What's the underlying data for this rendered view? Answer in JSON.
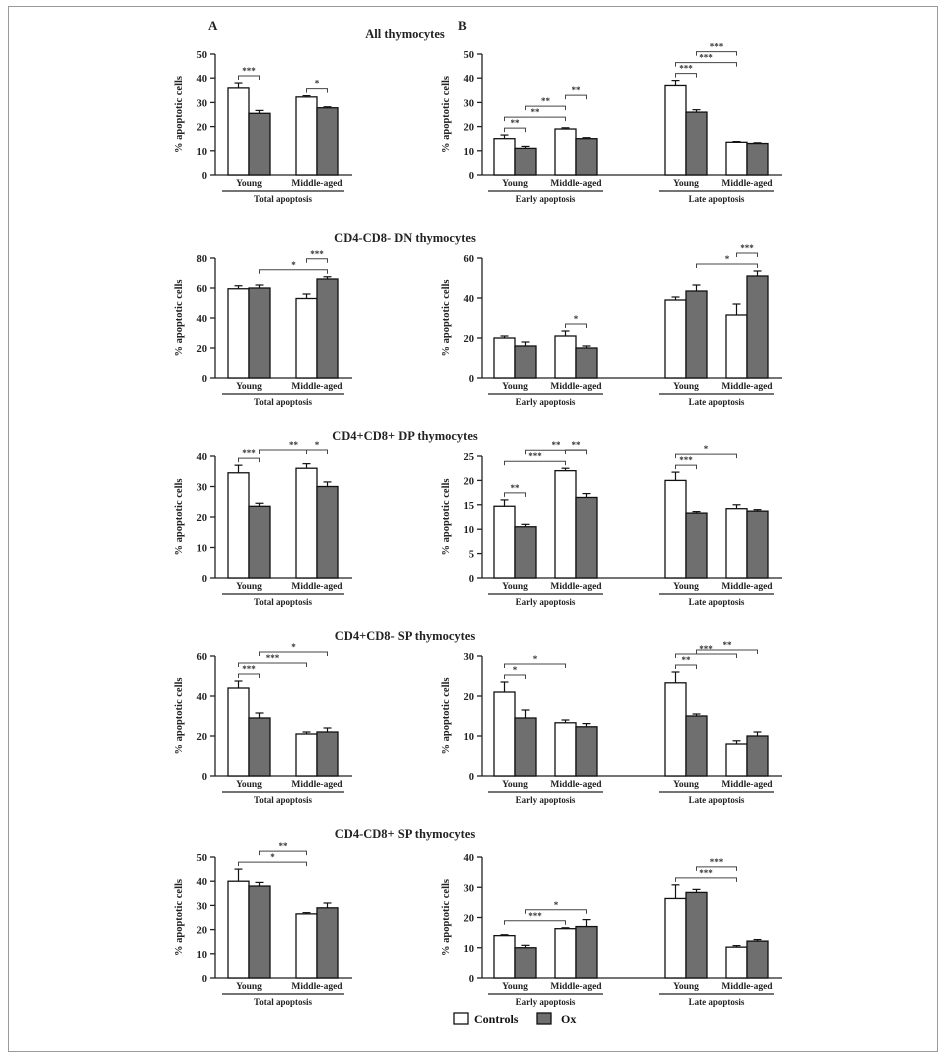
{
  "panel_labels": {
    "a": "A",
    "b": "B"
  },
  "legend": [
    {
      "name": "Controls",
      "color": "#ffffff"
    },
    {
      "name": "Ox",
      "color": "#6f6f6f"
    }
  ],
  "colors": {
    "controls": "#ffffff",
    "ox": "#6f6f6f",
    "axis": "#222222"
  },
  "chart_data": [
    {
      "type": "bar",
      "row": 0,
      "col": 0,
      "title": "All thymocytes",
      "ylabel": "% apoptotic cells",
      "ylim": [
        0,
        50
      ],
      "yticks": [
        0,
        10,
        20,
        30,
        40,
        50
      ],
      "groups": [
        {
          "label": "Total apoptosis",
          "categories": [
            "Young",
            "Middle-aged"
          ]
        }
      ],
      "series": [
        {
          "name": "Controls",
          "values": [
            36,
            32.3
          ],
          "errors": [
            2,
            0.5
          ]
        },
        {
          "name": "Ox",
          "values": [
            25.5,
            27.8
          ],
          "errors": [
            1.2,
            0.4
          ]
        }
      ],
      "significance": [
        {
          "from": 0,
          "to": 1,
          "label": "***"
        },
        {
          "from": 2,
          "to": 3,
          "label": "*"
        }
      ]
    },
    {
      "type": "bar",
      "row": 0,
      "col": 1,
      "title": "",
      "ylabel": "% apoptotic cells",
      "ylim": [
        0,
        50
      ],
      "yticks": [
        0,
        10,
        20,
        30,
        40,
        50
      ],
      "groups": [
        {
          "label": "Early apoptosis",
          "categories": [
            "Young",
            "Middle-aged"
          ]
        },
        {
          "label": "Late apoptosis",
          "categories": [
            "Young",
            "Middle-aged"
          ]
        }
      ],
      "series": [
        {
          "name": "Controls",
          "values": [
            15,
            19,
            37,
            13.5
          ],
          "errors": [
            1.5,
            0.5,
            2,
            0.3
          ]
        },
        {
          "name": "Ox",
          "values": [
            11,
            15,
            26,
            13
          ],
          "errors": [
            0.8,
            0.4,
            1,
            0.3
          ]
        }
      ],
      "significance": [
        {
          "from": 0,
          "to": 1,
          "label": "**"
        },
        {
          "from": 0,
          "to": 2,
          "label": "**"
        },
        {
          "from": 1,
          "to": 2,
          "label": "**"
        },
        {
          "from": 2,
          "to": 3,
          "label": "**"
        },
        {
          "from": 4,
          "to": 5,
          "label": "***"
        },
        {
          "from": 4,
          "to": 6,
          "label": "***"
        },
        {
          "from": 5,
          "to": 6,
          "label": "***"
        }
      ]
    },
    {
      "type": "bar",
      "row": 1,
      "col": 0,
      "title": "CD4-CD8- DN thymocytes",
      "ylabel": "% apoptotic cells",
      "ylim": [
        0,
        80
      ],
      "yticks": [
        0,
        20,
        40,
        60,
        80
      ],
      "groups": [
        {
          "label": "Total apoptosis",
          "categories": [
            "Young",
            "Middle-aged"
          ]
        }
      ],
      "series": [
        {
          "name": "Controls",
          "values": [
            59.5,
            53
          ],
          "errors": [
            2,
            3
          ]
        },
        {
          "name": "Ox",
          "values": [
            60,
            66
          ],
          "errors": [
            2,
            1.5
          ]
        }
      ],
      "significance": [
        {
          "from": 1,
          "to": 3,
          "label": "*"
        },
        {
          "from": 2,
          "to": 3,
          "label": "***"
        }
      ]
    },
    {
      "type": "bar",
      "row": 1,
      "col": 1,
      "title": "",
      "ylabel": "% apoptotic cells",
      "ylim": [
        0,
        60
      ],
      "yticks": [
        0,
        20,
        40,
        60
      ],
      "groups": [
        {
          "label": "Early apoptosis",
          "categories": [
            "Young",
            "Middle-aged"
          ]
        },
        {
          "label": "Late apoptosis",
          "categories": [
            "Young",
            "Middle-aged"
          ]
        }
      ],
      "series": [
        {
          "name": "Controls",
          "values": [
            20,
            21,
            39,
            31.5
          ],
          "errors": [
            1,
            2.5,
            1.5,
            5.5
          ]
        },
        {
          "name": "Ox",
          "values": [
            16,
            15,
            43.5,
            51
          ],
          "errors": [
            2,
            1,
            3,
            2.5
          ]
        }
      ],
      "significance": [
        {
          "from": 2,
          "to": 3,
          "label": "*"
        },
        {
          "from": 5,
          "to": 7,
          "label": "*"
        },
        {
          "from": 6,
          "to": 7,
          "label": "***"
        }
      ]
    },
    {
      "type": "bar",
      "row": 2,
      "col": 0,
      "title": "CD4+CD8+ DP thymocytes",
      "ylabel": "% apoptotic cells",
      "ylim": [
        0,
        40
      ],
      "yticks": [
        0,
        10,
        20,
        30,
        40
      ],
      "groups": [
        {
          "label": "Total apoptosis",
          "categories": [
            "Young",
            "Middle-aged"
          ]
        }
      ],
      "series": [
        {
          "name": "Controls",
          "values": [
            34.5,
            36
          ],
          "errors": [
            2.5,
            1.5
          ]
        },
        {
          "name": "Ox",
          "values": [
            23.5,
            30
          ],
          "errors": [
            1,
            1.5
          ]
        }
      ],
      "significance": [
        {
          "from": 0,
          "to": 1,
          "label": "***"
        },
        {
          "from": 1,
          "to": 3,
          "label": "**"
        },
        {
          "from": 2,
          "to": 3,
          "label": "*"
        }
      ]
    },
    {
      "type": "bar",
      "row": 2,
      "col": 1,
      "title": "",
      "ylabel": "% apoptotic cells",
      "ylim": [
        0,
        25
      ],
      "yticks": [
        0,
        5,
        10,
        15,
        20,
        25
      ],
      "groups": [
        {
          "label": "Early apoptosis",
          "categories": [
            "Young",
            "Middle-aged"
          ]
        },
        {
          "label": "Late apoptosis",
          "categories": [
            "Young",
            "Middle-aged"
          ]
        }
      ],
      "series": [
        {
          "name": "Controls",
          "values": [
            14.7,
            22,
            20,
            14.2
          ],
          "errors": [
            1.3,
            0.5,
            1.7,
            0.8
          ]
        },
        {
          "name": "Ox",
          "values": [
            10.5,
            16.5,
            13.3,
            13.7
          ],
          "errors": [
            0.5,
            0.8,
            0.3,
            0.3
          ]
        }
      ],
      "significance": [
        {
          "from": 0,
          "to": 1,
          "label": "**"
        },
        {
          "from": 0,
          "to": 2,
          "label": "***"
        },
        {
          "from": 1,
          "to": 3,
          "label": "**"
        },
        {
          "from": 2,
          "to": 3,
          "label": "**"
        },
        {
          "from": 4,
          "to": 5,
          "label": "***"
        },
        {
          "from": 4,
          "to": 6,
          "label": "*"
        }
      ]
    },
    {
      "type": "bar",
      "row": 3,
      "col": 0,
      "title": "CD4+CD8- SP thymocytes",
      "ylabel": "% apoptotic cells",
      "ylim": [
        0,
        60
      ],
      "yticks": [
        0,
        20,
        40,
        60
      ],
      "groups": [
        {
          "label": "Total apoptosis",
          "categories": [
            "Young",
            "Middle-aged"
          ]
        }
      ],
      "series": [
        {
          "name": "Controls",
          "values": [
            44,
            21
          ],
          "errors": [
            3.5,
            1
          ]
        },
        {
          "name": "Ox",
          "values": [
            29,
            22
          ],
          "errors": [
            2.5,
            2
          ]
        }
      ],
      "significance": [
        {
          "from": 0,
          "to": 1,
          "label": "***"
        },
        {
          "from": 0,
          "to": 2,
          "label": "***"
        },
        {
          "from": 1,
          "to": 3,
          "label": "*"
        }
      ]
    },
    {
      "type": "bar",
      "row": 3,
      "col": 1,
      "title": "",
      "ylabel": "% apoptotic cells",
      "ylim": [
        0,
        30
      ],
      "yticks": [
        0,
        10,
        20,
        30
      ],
      "groups": [
        {
          "label": "Early apoptosis",
          "categories": [
            "Young",
            "Middle-aged"
          ]
        },
        {
          "label": "Late apoptosis",
          "categories": [
            "Young",
            "Middle-aged"
          ]
        }
      ],
      "series": [
        {
          "name": "Controls",
          "values": [
            21,
            13.3,
            23.3,
            8
          ],
          "errors": [
            2.5,
            0.7,
            2.7,
            0.8
          ]
        },
        {
          "name": "Ox",
          "values": [
            14.5,
            12.3,
            15,
            10
          ],
          "errors": [
            2,
            0.8,
            0.5,
            1
          ]
        }
      ],
      "significance": [
        {
          "from": 0,
          "to": 1,
          "label": "*"
        },
        {
          "from": 0,
          "to": 2,
          "label": "*"
        },
        {
          "from": 4,
          "to": 5,
          "label": "**"
        },
        {
          "from": 4,
          "to": 6,
          "label": "***"
        },
        {
          "from": 5,
          "to": 7,
          "label": "**"
        }
      ]
    },
    {
      "type": "bar",
      "row": 4,
      "col": 0,
      "title": "CD4-CD8+ SP thymocytes",
      "ylabel": "% apoptotic cells",
      "ylim": [
        0,
        50
      ],
      "yticks": [
        0,
        10,
        20,
        30,
        40,
        50
      ],
      "groups": [
        {
          "label": "Total apoptosis",
          "categories": [
            "Young",
            "Middle-aged"
          ]
        }
      ],
      "series": [
        {
          "name": "Controls",
          "values": [
            40,
            26.5
          ],
          "errors": [
            5,
            0.5
          ]
        },
        {
          "name": "Ox",
          "values": [
            38,
            29
          ],
          "errors": [
            1.5,
            2
          ]
        }
      ],
      "significance": [
        {
          "from": 0,
          "to": 2,
          "label": "*"
        },
        {
          "from": 1,
          "to": 2,
          "label": "**"
        }
      ]
    },
    {
      "type": "bar",
      "row": 4,
      "col": 1,
      "title": "",
      "ylabel": "% apoptotic cells",
      "ylim": [
        0,
        40
      ],
      "yticks": [
        0,
        10,
        20,
        30,
        40
      ],
      "groups": [
        {
          "label": "Early apoptosis",
          "categories": [
            "Young",
            "Middle-aged"
          ]
        },
        {
          "label": "Late apoptosis",
          "categories": [
            "Young",
            "Middle-aged"
          ]
        }
      ],
      "series": [
        {
          "name": "Controls",
          "values": [
            14,
            16.3,
            26.3,
            10.2
          ],
          "errors": [
            0.3,
            0.3,
            4.5,
            0.5
          ]
        },
        {
          "name": "Ox",
          "values": [
            10,
            17,
            28.3,
            12.2
          ],
          "errors": [
            0.8,
            2.3,
            1,
            0.5
          ]
        }
      ],
      "significance": [
        {
          "from": 0,
          "to": 2,
          "label": "***"
        },
        {
          "from": 1,
          "to": 3,
          "label": "*"
        },
        {
          "from": 4,
          "to": 6,
          "label": "***"
        },
        {
          "from": 5,
          "to": 6,
          "label": "***"
        }
      ]
    }
  ]
}
